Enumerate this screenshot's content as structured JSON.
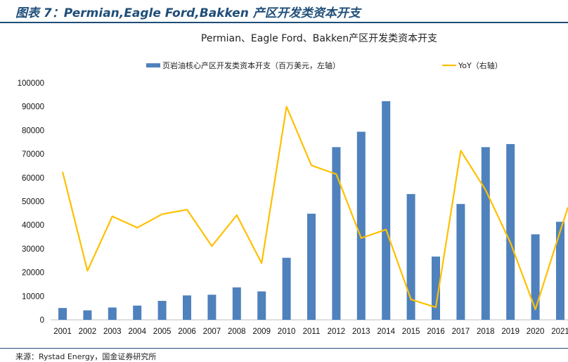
{
  "figure": {
    "title": "图表 7：Permian,Eagle Ford,Bakken 产区开发类资本开支",
    "source": "来源：Rystad Energy，国金证券研究所"
  },
  "colors": {
    "bar": "#4f81bd",
    "line": "#ffc000",
    "rule": "#1f4e79"
  },
  "chart_data": {
    "type": "bar",
    "title": "Permian、Eagle Ford、Bakken产区开发类资本开支",
    "categories": [
      "2001",
      "2002",
      "2003",
      "2004",
      "2005",
      "2006",
      "2007",
      "2008",
      "2009",
      "2010",
      "2011",
      "2012",
      "2013",
      "2014",
      "2015",
      "2016",
      "2017",
      "2018",
      "2019",
      "2020",
      "2021"
    ],
    "series": [
      {
        "name": "页岩油核心产区开发类资本开支（百万美元，左轴）",
        "type": "bar",
        "axis": "left",
        "values": [
          5000,
          4000,
          5200,
          6000,
          8000,
          10300,
          10600,
          13700,
          12000,
          26200,
          44800,
          72900,
          79400,
          92300,
          53100,
          26700,
          48900,
          72900,
          74200,
          36100,
          41400
        ]
      },
      {
        "name": "YoY（右轴）",
        "type": "line",
        "axis": "right",
        "values": [
          62500,
          20700,
          43700,
          38900,
          44600,
          46500,
          31100,
          44200,
          23900,
          90000,
          65200,
          61500,
          34500,
          38100,
          8600,
          5300,
          71400,
          54800,
          32500,
          4400,
          37500
        ]
      }
    ],
    "yaxis_left": {
      "ticks": [
        "0",
        "10000",
        "20000",
        "30000",
        "40000",
        "50000",
        "60000",
        "70000",
        "80000",
        "90000",
        "100000"
      ],
      "ylim": [
        0,
        100000
      ]
    },
    "legend_position": "top",
    "grid": false
  }
}
